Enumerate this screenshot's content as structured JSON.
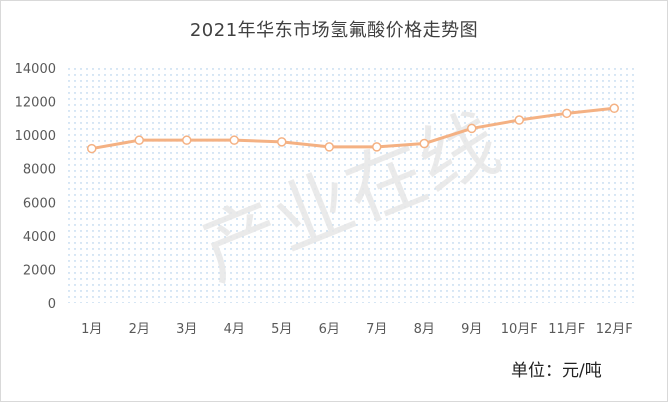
{
  "chart_data": {
    "type": "line",
    "title": "2021年华东市场氢氟酸价格走势图",
    "unit_label": "单位：元/吨",
    "categories": [
      "1月",
      "2月",
      "3月",
      "4月",
      "5月",
      "6月",
      "7月",
      "8月",
      "9月",
      "10月F",
      "11月F",
      "12月F"
    ],
    "series": [
      {
        "values": [
          9200,
          9700,
          9700,
          9700,
          9600,
          9300,
          9300,
          9500,
          10400,
          10900,
          11300,
          11600
        ]
      }
    ],
    "ylim": [
      0,
      14000
    ],
    "yticks": [
      0,
      2000,
      4000,
      6000,
      8000,
      10000,
      12000,
      14000
    ],
    "grid": false,
    "legend": "none",
    "colors": {
      "line": "#f4b183",
      "marker_edge": "#f4b183",
      "marker_fill": "#ffffff",
      "plot_dots": "#9dc3e6",
      "axis_text": "#595959"
    },
    "watermark": "产业在线"
  }
}
